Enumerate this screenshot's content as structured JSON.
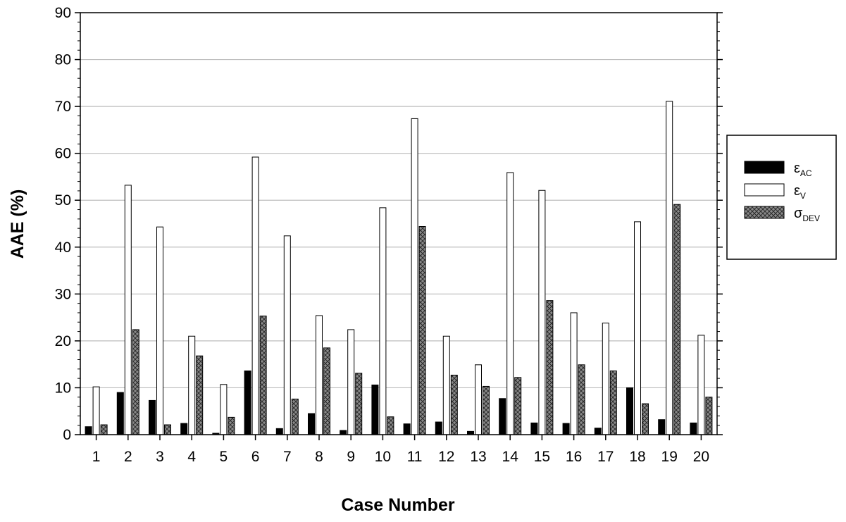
{
  "chart_data": {
    "type": "bar",
    "xlabel": "Case Number",
    "ylabel": "AAE (%)",
    "ylim": [
      0,
      90
    ],
    "yticks": [
      0,
      10,
      20,
      30,
      40,
      50,
      60,
      70,
      80,
      90
    ],
    "grid": "horizontal",
    "legend_position": "right",
    "categories": [
      "1",
      "2",
      "3",
      "4",
      "5",
      "6",
      "7",
      "8",
      "9",
      "10",
      "11",
      "12",
      "13",
      "14",
      "15",
      "16",
      "17",
      "18",
      "19",
      "20"
    ],
    "series": [
      {
        "name": "ε",
        "subscript": "AC",
        "fill": "solid-black",
        "values": [
          1.7,
          9.0,
          7.3,
          2.4,
          0.3,
          13.6,
          1.3,
          4.5,
          0.9,
          10.6,
          2.3,
          2.7,
          0.7,
          7.7,
          2.5,
          2.4,
          1.4,
          10.0,
          3.2,
          2.5
        ]
      },
      {
        "name": "ε",
        "subscript": "V",
        "fill": "white",
        "values": [
          10.2,
          53.2,
          44.3,
          21.0,
          10.7,
          59.2,
          42.4,
          25.4,
          22.4,
          48.4,
          67.4,
          21.0,
          14.9,
          55.9,
          52.1,
          26.0,
          23.8,
          45.4,
          71.1,
          21.2
        ]
      },
      {
        "name": "σ",
        "subscript": "DEV",
        "fill": "crosshatch-gray",
        "values": [
          2.1,
          22.4,
          2.1,
          16.8,
          3.7,
          25.3,
          7.6,
          18.5,
          13.1,
          3.8,
          44.4,
          12.7,
          10.3,
          12.2,
          28.6,
          14.9,
          13.6,
          6.6,
          49.1,
          8.0
        ]
      }
    ]
  }
}
